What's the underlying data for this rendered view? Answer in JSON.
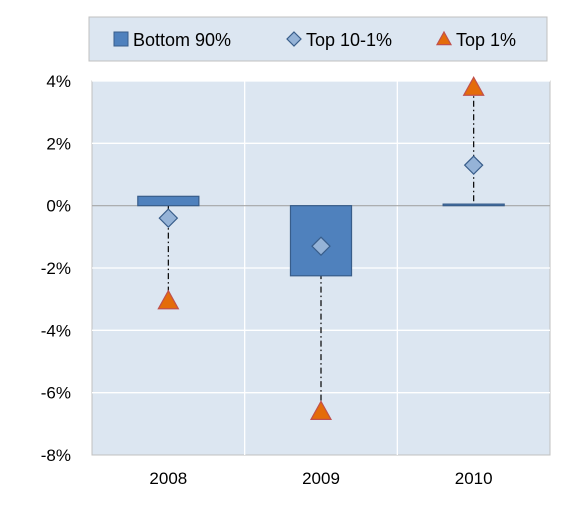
{
  "chart_data": {
    "type": "bar",
    "categories": [
      "2008",
      "2009",
      "2010"
    ],
    "series": [
      {
        "name": "Bottom 90%",
        "kind": "bar",
        "marker": "square",
        "color": "#4f81bd",
        "values": [
          0.3,
          -2.25,
          0.05
        ]
      },
      {
        "name": "Top 10-1%",
        "kind": "marker",
        "marker": "diamond",
        "color": "#95b3d7",
        "values": [
          -0.4,
          -1.3,
          1.3
        ]
      },
      {
        "name": "Top 1%",
        "kind": "marker",
        "marker": "triangle",
        "color": "#e46c0a",
        "values": [
          -3.05,
          -6.6,
          3.8
        ]
      }
    ],
    "ylim": [
      -8,
      4
    ],
    "yticks": [
      "4%",
      "2%",
      "0%",
      "-2%",
      "-4%",
      "-6%",
      "-8%"
    ],
    "ytick_values": [
      4,
      2,
      0,
      -2,
      -4,
      -6,
      -8
    ],
    "y_unit": "%",
    "title": "",
    "xlabel": "",
    "ylabel": "",
    "legend_position": "top",
    "grid": true,
    "drop_lines": "dash-dot vertical lines between markers for each category",
    "plot_background": "#dce6f1",
    "legend_background": "#dce6f1"
  }
}
